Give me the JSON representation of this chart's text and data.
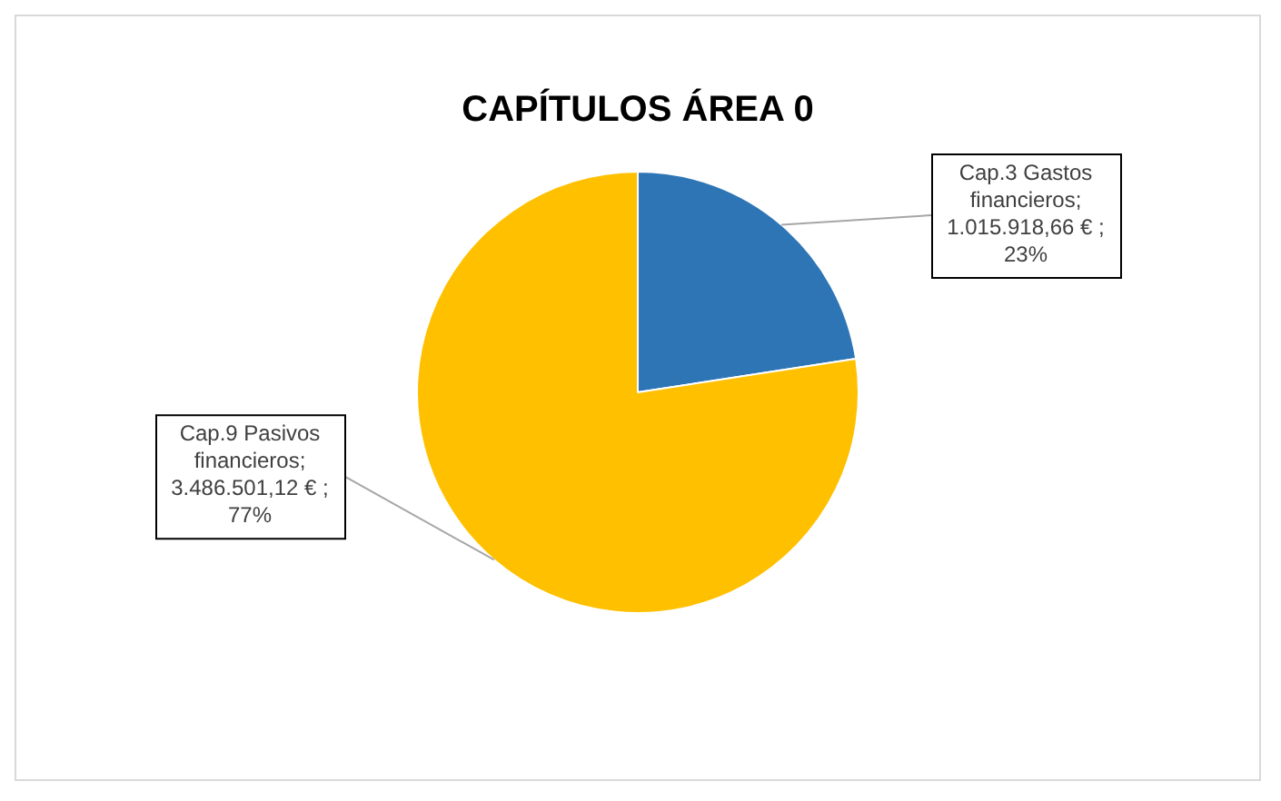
{
  "chart_data": {
    "type": "pie",
    "title": "CAPÍTULOS ÁREA 0",
    "categories": [
      "Cap.3 Gastos financieros",
      "Cap.9 Pasivos financieros"
    ],
    "values": [
      1015918.66,
      3486501.12
    ],
    "colors": [
      "#2e75b6",
      "#ffc000"
    ],
    "value_labels": [
      "; 1.015.918,66 € ; 23%",
      "; 3.486.501,12 € ; 77%"
    ],
    "legend": false
  }
}
